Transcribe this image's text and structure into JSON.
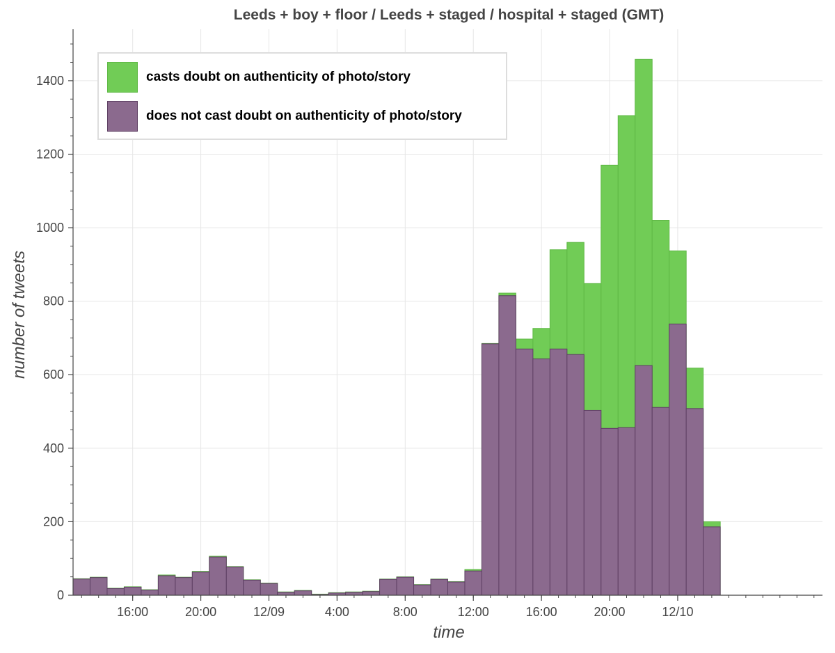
{
  "chart_data": {
    "type": "bar",
    "stacked": false,
    "title": "Leeds + boy + floor / Leeds + staged / hospital + staged (GMT)",
    "xlabel": "time",
    "ylabel": "number of tweets",
    "ylim": [
      0,
      1540
    ],
    "yticks": [
      0,
      200,
      400,
      600,
      800,
      1000,
      1200,
      1400
    ],
    "bin_hours": 1,
    "xlim": [
      "2016-12-08T12:30",
      "2016-12-10T08:30"
    ],
    "xticks": [
      {
        "label": "16:00",
        "at": "2016-12-08T16:00"
      },
      {
        "label": "20:00",
        "at": "2016-12-08T20:00"
      },
      {
        "label": "12/09",
        "at": "2016-12-09T00:00"
      },
      {
        "label": "4:00",
        "at": "2016-12-09T04:00"
      },
      {
        "label": "8:00",
        "at": "2016-12-09T08:00"
      },
      {
        "label": "12:00",
        "at": "2016-12-09T12:00"
      },
      {
        "label": "16:00",
        "at": "2016-12-09T16:00"
      },
      {
        "label": "20:00",
        "at": "2016-12-09T20:00"
      },
      {
        "label": "12/10",
        "at": "2016-12-10T00:00"
      }
    ],
    "x": [
      "2016-12-08T13:00",
      "2016-12-08T14:00",
      "2016-12-08T15:00",
      "2016-12-08T16:00",
      "2016-12-08T17:00",
      "2016-12-08T18:00",
      "2016-12-08T19:00",
      "2016-12-08T20:00",
      "2016-12-08T21:00",
      "2016-12-08T22:00",
      "2016-12-08T23:00",
      "2016-12-09T00:00",
      "2016-12-09T01:00",
      "2016-12-09T02:00",
      "2016-12-09T03:00",
      "2016-12-09T04:00",
      "2016-12-09T05:00",
      "2016-12-09T06:00",
      "2016-12-09T07:00",
      "2016-12-09T08:00",
      "2016-12-09T09:00",
      "2016-12-09T10:00",
      "2016-12-09T11:00",
      "2016-12-09T12:00",
      "2016-12-09T13:00",
      "2016-12-09T14:00",
      "2016-12-09T15:00",
      "2016-12-09T16:00",
      "2016-12-09T17:00",
      "2016-12-09T18:00",
      "2016-12-09T19:00",
      "2016-12-09T20:00",
      "2016-12-09T21:00",
      "2016-12-09T22:00",
      "2016-12-09T23:00",
      "2016-12-10T00:00",
      "2016-12-10T01:00",
      "2016-12-10T02:00"
    ],
    "series": [
      {
        "name": "casts doubt on authenticity of photo/story",
        "color": "#71cc56",
        "values": [
          45,
          49,
          19,
          23,
          15,
          55,
          49,
          65,
          106,
          78,
          42,
          33,
          9,
          13,
          3,
          7,
          9,
          11,
          44,
          50,
          29,
          44,
          37,
          70,
          685,
          822,
          697,
          726,
          940,
          960,
          848,
          1170,
          1305,
          1458,
          1020,
          937,
          618,
          200
        ]
      },
      {
        "name": "does not cast doubt on authenticity of photo/story",
        "color": "#8b6a8e",
        "values": [
          44,
          48,
          18,
          22,
          14,
          53,
          48,
          63,
          104,
          77,
          41,
          32,
          8,
          12,
          2,
          6,
          8,
          10,
          43,
          49,
          28,
          43,
          36,
          66,
          684,
          815,
          670,
          643,
          670,
          655,
          503,
          454,
          456,
          625,
          511,
          738,
          508,
          186
        ]
      }
    ],
    "grid": true,
    "legend_position": "top-left"
  }
}
